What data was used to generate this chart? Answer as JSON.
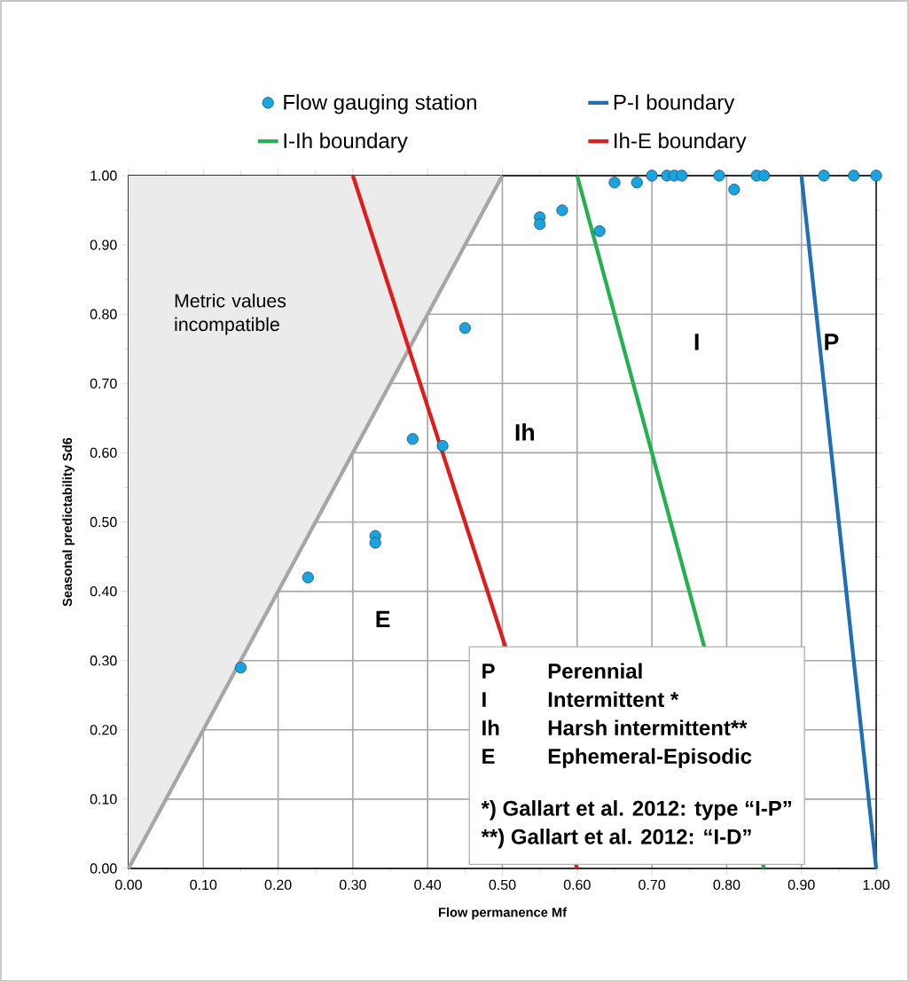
{
  "chart_data": {
    "type": "scatter",
    "xlabel": "Flow permanence Mf",
    "ylabel": "Seasonal predictability Sd6",
    "xlim": [
      0,
      1
    ],
    "ylim": [
      0,
      1
    ],
    "xticks": [
      {
        "value": 0,
        "label": "0.00"
      },
      {
        "value": 0.1,
        "label": "0.10"
      },
      {
        "value": 0.2,
        "label": "0.20"
      },
      {
        "value": 0.3,
        "label": "0.30"
      },
      {
        "value": 0.4,
        "label": "0.40"
      },
      {
        "value": 0.5,
        "label": "0.50"
      },
      {
        "value": 0.6,
        "label": "0.60"
      },
      {
        "value": 0.7,
        "label": "0.70"
      },
      {
        "value": 0.8,
        "label": "0.80"
      },
      {
        "value": 0.9,
        "label": "0.90"
      },
      {
        "value": 1,
        "label": "1.00"
      }
    ],
    "yticks": [
      {
        "value": 0,
        "label": "0.00"
      },
      {
        "value": 0.1,
        "label": "0.10"
      },
      {
        "value": 0.2,
        "label": "0.20"
      },
      {
        "value": 0.3,
        "label": "0.30"
      },
      {
        "value": 0.4,
        "label": "0.40"
      },
      {
        "value": 0.5,
        "label": "0.50"
      },
      {
        "value": 0.6,
        "label": "0.60"
      },
      {
        "value": 0.7,
        "label": "0.70"
      },
      {
        "value": 0.8,
        "label": "0.80"
      },
      {
        "value": 0.9,
        "label": "0.90"
      },
      {
        "value": 1,
        "label": "1.00"
      }
    ],
    "grid": true,
    "legend": "top",
    "series": [
      {
        "type": "line",
        "color": "#a6a6a6",
        "x": [
          0,
          0.5
        ],
        "values": [
          0,
          1
        ],
        "lower": [
          0,
          1
        ],
        "upper": [
          1,
          1
        ],
        "marker": "none"
      },
      {
        "name": "Flow gauging station",
        "marker": "circle",
        "color": "#1aa3e0",
        "x": [
          0.15,
          0.24,
          0.33,
          0.33,
          0.38,
          0.42,
          0.45,
          0.55,
          0.55,
          0.58,
          0.63,
          0.65,
          0.68,
          0.7,
          0.72,
          0.73,
          0.74,
          0.79,
          0.81,
          0.84,
          0.85,
          0.93,
          0.97,
          1.0
        ],
        "values": [
          0.29,
          0.42,
          0.48,
          0.47,
          0.62,
          0.61,
          0.78,
          0.94,
          0.93,
          0.95,
          0.92,
          0.99,
          0.99,
          1.0,
          1.0,
          1.0,
          1.0,
          1.0,
          0.98,
          1.0,
          1.0,
          1.0,
          1.0,
          1.0
        ]
      },
      {
        "type": "line",
        "name": "P-I boundary",
        "color": "#1f6fb4",
        "x": [
          0.9,
          1.0
        ],
        "values": [
          1,
          0
        ],
        "marker": "none"
      },
      {
        "type": "line",
        "name": "I-Ih boundary",
        "color": "#22b14c",
        "x": [
          0.6,
          0.85
        ],
        "values": [
          1,
          0
        ],
        "marker": "none"
      },
      {
        "type": "line",
        "name": "Ih-E boundary",
        "color": "#e01b1b",
        "x": [
          0.3,
          0.6
        ],
        "values": [
          1,
          0
        ],
        "marker": "none"
      }
    ],
    "annotations": [
      "Metric values incompatible",
      "Ih",
      "I",
      "P",
      "E",
      "P",
      "Perennial",
      "I",
      "Intermittent *",
      "Ih",
      "Harsh intermittent**",
      "E",
      "Ephemeral-Episodic",
      "*) Gallart et al. 2012: type “I-P”",
      "**) Gallart et al. 2012: “I-D”"
    ]
  }
}
